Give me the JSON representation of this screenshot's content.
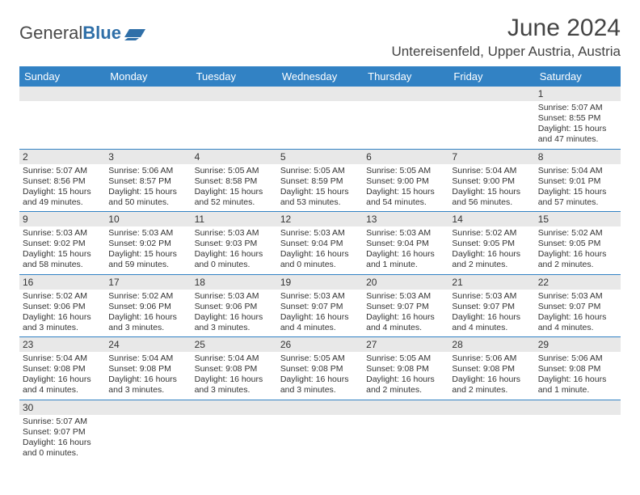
{
  "logo": {
    "text_general": "General",
    "text_blue": "Blue"
  },
  "title": "June 2024",
  "location": "Untereisenfeld, Upper Austria, Austria",
  "colors": {
    "header_bg": "#3282c4",
    "header_text": "#ffffff",
    "date_bg": "#e8e8e8",
    "rule": "#3282c4",
    "text": "#333333"
  },
  "day_names": [
    "Sunday",
    "Monday",
    "Tuesday",
    "Wednesday",
    "Thursday",
    "Friday",
    "Saturday"
  ],
  "weeks": [
    [
      null,
      null,
      null,
      null,
      null,
      null,
      {
        "d": "1",
        "sr": "Sunrise: 5:07 AM",
        "ss": "Sunset: 8:55 PM",
        "dl1": "Daylight: 15 hours",
        "dl2": "and 47 minutes."
      }
    ],
    [
      {
        "d": "2",
        "sr": "Sunrise: 5:07 AM",
        "ss": "Sunset: 8:56 PM",
        "dl1": "Daylight: 15 hours",
        "dl2": "and 49 minutes."
      },
      {
        "d": "3",
        "sr": "Sunrise: 5:06 AM",
        "ss": "Sunset: 8:57 PM",
        "dl1": "Daylight: 15 hours",
        "dl2": "and 50 minutes."
      },
      {
        "d": "4",
        "sr": "Sunrise: 5:05 AM",
        "ss": "Sunset: 8:58 PM",
        "dl1": "Daylight: 15 hours",
        "dl2": "and 52 minutes."
      },
      {
        "d": "5",
        "sr": "Sunrise: 5:05 AM",
        "ss": "Sunset: 8:59 PM",
        "dl1": "Daylight: 15 hours",
        "dl2": "and 53 minutes."
      },
      {
        "d": "6",
        "sr": "Sunrise: 5:05 AM",
        "ss": "Sunset: 9:00 PM",
        "dl1": "Daylight: 15 hours",
        "dl2": "and 54 minutes."
      },
      {
        "d": "7",
        "sr": "Sunrise: 5:04 AM",
        "ss": "Sunset: 9:00 PM",
        "dl1": "Daylight: 15 hours",
        "dl2": "and 56 minutes."
      },
      {
        "d": "8",
        "sr": "Sunrise: 5:04 AM",
        "ss": "Sunset: 9:01 PM",
        "dl1": "Daylight: 15 hours",
        "dl2": "and 57 minutes."
      }
    ],
    [
      {
        "d": "9",
        "sr": "Sunrise: 5:03 AM",
        "ss": "Sunset: 9:02 PM",
        "dl1": "Daylight: 15 hours",
        "dl2": "and 58 minutes."
      },
      {
        "d": "10",
        "sr": "Sunrise: 5:03 AM",
        "ss": "Sunset: 9:02 PM",
        "dl1": "Daylight: 15 hours",
        "dl2": "and 59 minutes."
      },
      {
        "d": "11",
        "sr": "Sunrise: 5:03 AM",
        "ss": "Sunset: 9:03 PM",
        "dl1": "Daylight: 16 hours",
        "dl2": "and 0 minutes."
      },
      {
        "d": "12",
        "sr": "Sunrise: 5:03 AM",
        "ss": "Sunset: 9:04 PM",
        "dl1": "Daylight: 16 hours",
        "dl2": "and 0 minutes."
      },
      {
        "d": "13",
        "sr": "Sunrise: 5:03 AM",
        "ss": "Sunset: 9:04 PM",
        "dl1": "Daylight: 16 hours",
        "dl2": "and 1 minute."
      },
      {
        "d": "14",
        "sr": "Sunrise: 5:02 AM",
        "ss": "Sunset: 9:05 PM",
        "dl1": "Daylight: 16 hours",
        "dl2": "and 2 minutes."
      },
      {
        "d": "15",
        "sr": "Sunrise: 5:02 AM",
        "ss": "Sunset: 9:05 PM",
        "dl1": "Daylight: 16 hours",
        "dl2": "and 2 minutes."
      }
    ],
    [
      {
        "d": "16",
        "sr": "Sunrise: 5:02 AM",
        "ss": "Sunset: 9:06 PM",
        "dl1": "Daylight: 16 hours",
        "dl2": "and 3 minutes."
      },
      {
        "d": "17",
        "sr": "Sunrise: 5:02 AM",
        "ss": "Sunset: 9:06 PM",
        "dl1": "Daylight: 16 hours",
        "dl2": "and 3 minutes."
      },
      {
        "d": "18",
        "sr": "Sunrise: 5:03 AM",
        "ss": "Sunset: 9:06 PM",
        "dl1": "Daylight: 16 hours",
        "dl2": "and 3 minutes."
      },
      {
        "d": "19",
        "sr": "Sunrise: 5:03 AM",
        "ss": "Sunset: 9:07 PM",
        "dl1": "Daylight: 16 hours",
        "dl2": "and 4 minutes."
      },
      {
        "d": "20",
        "sr": "Sunrise: 5:03 AM",
        "ss": "Sunset: 9:07 PM",
        "dl1": "Daylight: 16 hours",
        "dl2": "and 4 minutes."
      },
      {
        "d": "21",
        "sr": "Sunrise: 5:03 AM",
        "ss": "Sunset: 9:07 PM",
        "dl1": "Daylight: 16 hours",
        "dl2": "and 4 minutes."
      },
      {
        "d": "22",
        "sr": "Sunrise: 5:03 AM",
        "ss": "Sunset: 9:07 PM",
        "dl1": "Daylight: 16 hours",
        "dl2": "and 4 minutes."
      }
    ],
    [
      {
        "d": "23",
        "sr": "Sunrise: 5:04 AM",
        "ss": "Sunset: 9:08 PM",
        "dl1": "Daylight: 16 hours",
        "dl2": "and 4 minutes."
      },
      {
        "d": "24",
        "sr": "Sunrise: 5:04 AM",
        "ss": "Sunset: 9:08 PM",
        "dl1": "Daylight: 16 hours",
        "dl2": "and 3 minutes."
      },
      {
        "d": "25",
        "sr": "Sunrise: 5:04 AM",
        "ss": "Sunset: 9:08 PM",
        "dl1": "Daylight: 16 hours",
        "dl2": "and 3 minutes."
      },
      {
        "d": "26",
        "sr": "Sunrise: 5:05 AM",
        "ss": "Sunset: 9:08 PM",
        "dl1": "Daylight: 16 hours",
        "dl2": "and 3 minutes."
      },
      {
        "d": "27",
        "sr": "Sunrise: 5:05 AM",
        "ss": "Sunset: 9:08 PM",
        "dl1": "Daylight: 16 hours",
        "dl2": "and 2 minutes."
      },
      {
        "d": "28",
        "sr": "Sunrise: 5:06 AM",
        "ss": "Sunset: 9:08 PM",
        "dl1": "Daylight: 16 hours",
        "dl2": "and 2 minutes."
      },
      {
        "d": "29",
        "sr": "Sunrise: 5:06 AM",
        "ss": "Sunset: 9:08 PM",
        "dl1": "Daylight: 16 hours",
        "dl2": "and 1 minute."
      }
    ],
    [
      {
        "d": "30",
        "sr": "Sunrise: 5:07 AM",
        "ss": "Sunset: 9:07 PM",
        "dl1": "Daylight: 16 hours",
        "dl2": "and 0 minutes."
      },
      null,
      null,
      null,
      null,
      null,
      null
    ]
  ]
}
